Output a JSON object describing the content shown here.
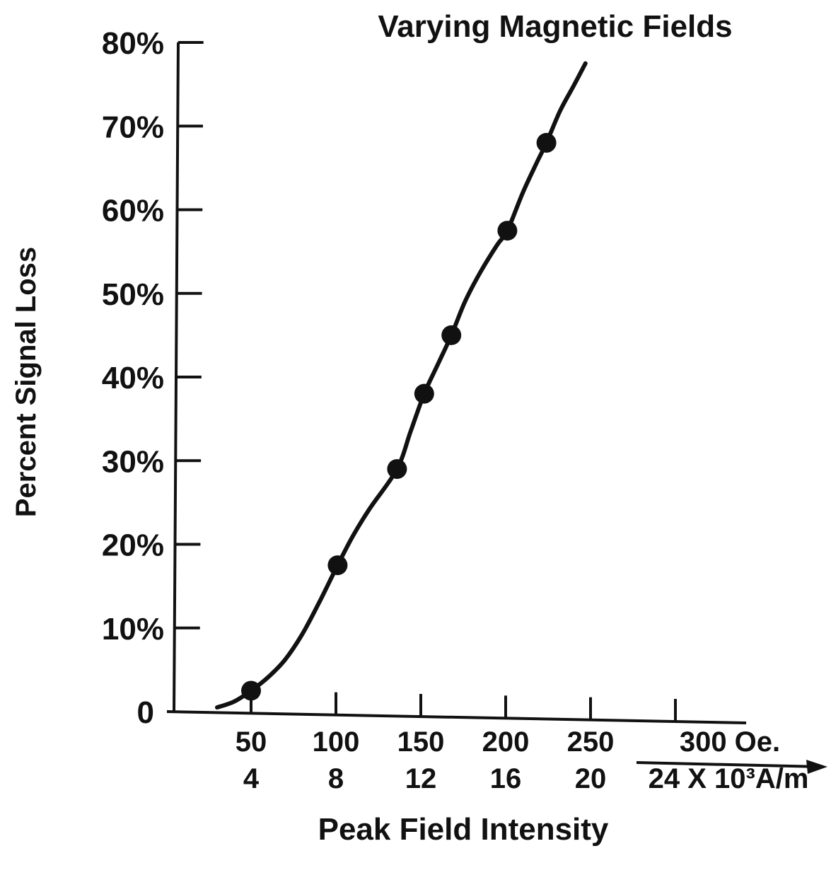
{
  "chart_data": {
    "type": "line",
    "title": "Varying Magnetic Fields",
    "xlabel": "Peak Field Intensity",
    "ylabel": "Percent Signal Loss",
    "x_ticks_primary": [
      "50",
      "100",
      "150",
      "200",
      "250",
      "300 Oe."
    ],
    "x_ticks_secondary": [
      "4",
      "8",
      "12",
      "16",
      "20",
      "24 X 10³A/m"
    ],
    "x_tick_values": [
      50,
      100,
      150,
      200,
      250,
      300
    ],
    "y_ticks": [
      "0",
      "10%",
      "20%",
      "30%",
      "40%",
      "50%",
      "60%",
      "70%",
      "80%"
    ],
    "y_tick_values": [
      0,
      10,
      20,
      30,
      40,
      50,
      60,
      70,
      80
    ],
    "xlim": [
      0,
      340
    ],
    "ylim": [
      0,
      80
    ],
    "grid": false,
    "series": [
      {
        "x": [
          50,
          101,
          136,
          152,
          168,
          201,
          224
        ],
        "y": [
          2.5,
          17.5,
          29,
          38,
          45,
          57.5,
          68
        ],
        "curve_x": [
          30,
          40,
          50,
          60,
          70,
          80,
          90,
          101,
          110,
          120,
          136,
          144,
          152,
          160,
          168,
          176,
          185,
          195,
          201,
          210,
          218,
          224,
          232,
          240,
          247
        ],
        "curve_y": [
          0.5,
          1.2,
          2.5,
          4.1,
          6.2,
          9.2,
          13.0,
          17.5,
          21.0,
          24.3,
          29.0,
          33.5,
          38.0,
          41.5,
          45.0,
          49.0,
          52.5,
          55.8,
          57.5,
          62.0,
          65.5,
          68.0,
          71.8,
          74.8,
          77.5
        ]
      }
    ],
    "colors": {
      "ink": "#111111",
      "background": "#ffffff"
    }
  }
}
